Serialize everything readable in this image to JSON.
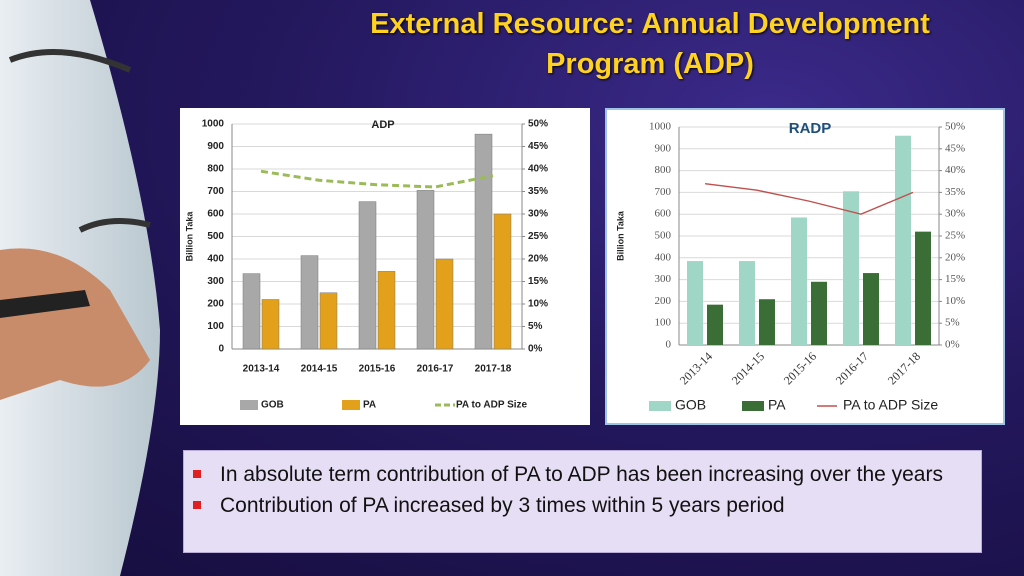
{
  "slide": {
    "title": "External Resource: Annual Development Program (ADP)",
    "bullets": [
      "In absolute term contribution of PA  to ADP has been increasing over the years",
      "Contribution of PA increased by 3 times within 5 years period"
    ]
  },
  "chart_data": [
    {
      "type": "bar",
      "title": "ADP",
      "y_label": "Billion Taka",
      "categories": [
        "2013-14",
        "2014-15",
        "2015-16",
        "2016-17",
        "2017-18"
      ],
      "series": [
        {
          "name": "GOB",
          "color": "#a8a8a8",
          "values": [
            335,
            415,
            655,
            705,
            955
          ]
        },
        {
          "name": "PA",
          "color": "#e3a11b",
          "values": [
            220,
            250,
            345,
            400,
            600
          ]
        },
        {
          "name": "PA to ADP Size",
          "color": "#9bbb59",
          "axis": "y2",
          "line": "dashed",
          "values": [
            39.5,
            37.5,
            36.5,
            36,
            38.5
          ]
        }
      ],
      "ylim": [
        0,
        1000
      ],
      "yticks": [
        0,
        100,
        200,
        300,
        400,
        500,
        600,
        700,
        800,
        900,
        1000
      ],
      "y2lim": [
        0,
        50
      ],
      "y2ticks": [
        {
          "value": 0,
          "label": "0%"
        },
        {
          "value": 5,
          "label": "5%"
        },
        {
          "value": 10,
          "label": "10%"
        },
        {
          "value": 15,
          "label": "15%"
        },
        {
          "value": 20,
          "label": "20%"
        },
        {
          "value": 25,
          "label": "25%"
        },
        {
          "value": 30,
          "label": "30%"
        },
        {
          "value": 35,
          "label": "35%"
        },
        {
          "value": 40,
          "label": "40%"
        },
        {
          "value": 45,
          "label": "45%"
        },
        {
          "value": 50,
          "label": "50%"
        }
      ],
      "grid": true
    },
    {
      "type": "bar",
      "title": "RADP",
      "y_label": "Billion Taka",
      "categories": [
        "2013-14",
        "2014-15",
        "2015-16",
        "2016-17",
        "2017-18"
      ],
      "series": [
        {
          "name": "GOB",
          "color": "#9fd6c6",
          "values": [
            385,
            385,
            585,
            705,
            960
          ]
        },
        {
          "name": "PA",
          "color": "#3b6d36",
          "values": [
            185,
            210,
            290,
            330,
            520
          ]
        },
        {
          "name": "PA to ADP Size",
          "color": "#c0504d",
          "axis": "y2",
          "line": "solid",
          "values": [
            37,
            35.5,
            33,
            30,
            35
          ]
        }
      ],
      "ylim": [
        0,
        1000
      ],
      "yticks": [
        0,
        100,
        200,
        300,
        400,
        500,
        600,
        700,
        800,
        900,
        1000
      ],
      "y2lim": [
        0,
        50
      ],
      "y2ticks": [
        {
          "value": 0,
          "label": "0%"
        },
        {
          "value": 5,
          "label": "5%"
        },
        {
          "value": 10,
          "label": "10%"
        },
        {
          "value": 15,
          "label": "15%"
        },
        {
          "value": 20,
          "label": "20%"
        },
        {
          "value": 25,
          "label": "25%"
        },
        {
          "value": 30,
          "label": "30%"
        },
        {
          "value": 35,
          "label": "35%"
        },
        {
          "value": 40,
          "label": "40%"
        },
        {
          "value": 45,
          "label": "45%"
        },
        {
          "value": 50,
          "label": "50%"
        }
      ],
      "grid": true
    }
  ]
}
